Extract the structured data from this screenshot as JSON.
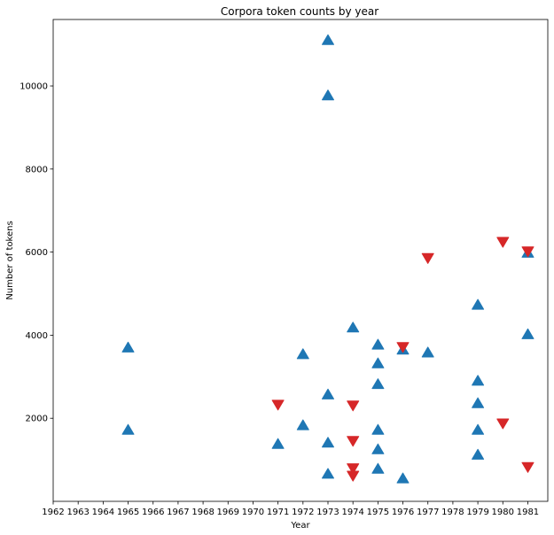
{
  "chart_data": {
    "type": "scatter",
    "title": "Corpora token counts by year",
    "xlabel": "Year",
    "ylabel": "Number of tokens",
    "xlim": [
      1962,
      1981.8
    ],
    "ylim": [
      0,
      11600
    ],
    "x_ticks": [
      "1962",
      "1963",
      "1964",
      "1965",
      "1966",
      "1967",
      "1968",
      "1969",
      "1970",
      "1971",
      "1972",
      "1973",
      "1974",
      "1975",
      "1976",
      "1977",
      "1978",
      "1979",
      "1980",
      "1981"
    ],
    "y_ticks": [
      2000,
      4000,
      6000,
      8000,
      10000
    ],
    "grid": false,
    "series": [
      {
        "marker": "triangle-up",
        "color": "#1f77b4",
        "points": [
          {
            "x": 1965,
            "y": 3700
          },
          {
            "x": 1965,
            "y": 1720
          },
          {
            "x": 1971,
            "y": 1380
          },
          {
            "x": 1972,
            "y": 3540
          },
          {
            "x": 1972,
            "y": 1830
          },
          {
            "x": 1973,
            "y": 11100
          },
          {
            "x": 1973,
            "y": 9770
          },
          {
            "x": 1973,
            "y": 2570
          },
          {
            "x": 1973,
            "y": 1410
          },
          {
            "x": 1973,
            "y": 660
          },
          {
            "x": 1974,
            "y": 4180
          },
          {
            "x": 1975,
            "y": 3770
          },
          {
            "x": 1975,
            "y": 3320
          },
          {
            "x": 1975,
            "y": 2820
          },
          {
            "x": 1975,
            "y": 1720
          },
          {
            "x": 1975,
            "y": 1250
          },
          {
            "x": 1975,
            "y": 780
          },
          {
            "x": 1976,
            "y": 3650
          },
          {
            "x": 1976,
            "y": 550
          },
          {
            "x": 1977,
            "y": 3580
          },
          {
            "x": 1979,
            "y": 4730
          },
          {
            "x": 1979,
            "y": 2900
          },
          {
            "x": 1979,
            "y": 2360
          },
          {
            "x": 1979,
            "y": 1720
          },
          {
            "x": 1979,
            "y": 1120
          },
          {
            "x": 1981,
            "y": 5980
          },
          {
            "x": 1981,
            "y": 4020
          }
        ]
      },
      {
        "marker": "triangle-down",
        "color": "#d62728",
        "points": [
          {
            "x": 1971,
            "y": 2330
          },
          {
            "x": 1974,
            "y": 2310
          },
          {
            "x": 1974,
            "y": 1460
          },
          {
            "x": 1974,
            "y": 800
          },
          {
            "x": 1974,
            "y": 620
          },
          {
            "x": 1976,
            "y": 3720
          },
          {
            "x": 1977,
            "y": 5860
          },
          {
            "x": 1980,
            "y": 6250
          },
          {
            "x": 1980,
            "y": 1880
          },
          {
            "x": 1981,
            "y": 6020
          },
          {
            "x": 1981,
            "y": 830
          }
        ]
      }
    ]
  }
}
